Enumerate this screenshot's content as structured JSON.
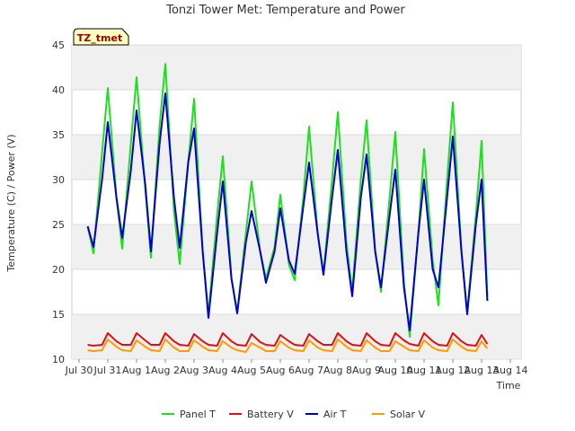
{
  "chart_data": {
    "type": "line",
    "title": "Tonzi Tower Met: Temperature and Power",
    "tag": "TZ_tmet",
    "xlabel": "Time",
    "ylabel": "Temperature (C) / Power (V)",
    "ylim": [
      10,
      45
    ],
    "yticks": [
      10,
      15,
      20,
      25,
      30,
      35,
      40,
      45
    ],
    "xlim": [
      0,
      15
    ],
    "xticks": [
      {
        "x": 0,
        "label": "Jul 30"
      },
      {
        "x": 1,
        "label": "Jul 31"
      },
      {
        "x": 2,
        "label": "Aug 1"
      },
      {
        "x": 3,
        "label": "Aug 2"
      },
      {
        "x": 4,
        "label": "Aug 3"
      },
      {
        "x": 5,
        "label": "Aug 4"
      },
      {
        "x": 6,
        "label": "Aug 5"
      },
      {
        "x": 7,
        "label": "Aug 6"
      },
      {
        "x": 8,
        "label": "Aug 7"
      },
      {
        "x": 9,
        "label": "Aug 8"
      },
      {
        "x": 10,
        "label": "Aug 9"
      },
      {
        "x": 11,
        "label": "Aug 10"
      },
      {
        "x": 12,
        "label": "Aug 11"
      },
      {
        "x": 13,
        "label": "Aug 12"
      },
      {
        "x": 14,
        "label": "Aug 13"
      },
      {
        "x": 15,
        "label": "Aug 14"
      }
    ],
    "grid": "horizontal bands",
    "legend_position": "bottom",
    "series": [
      {
        "name": "Panel T",
        "color": "#22dd22",
        "x": [
          0.3,
          0.5,
          0.8,
          1.0,
          1.3,
          1.5,
          1.8,
          2.0,
          2.3,
          2.5,
          2.8,
          3.0,
          3.3,
          3.5,
          3.8,
          4.0,
          4.3,
          4.5,
          4.8,
          5.0,
          5.3,
          5.5,
          5.8,
          6.0,
          6.3,
          6.5,
          6.8,
          7.0,
          7.3,
          7.5,
          7.8,
          8.0,
          8.3,
          8.5,
          8.8,
          9.0,
          9.3,
          9.5,
          9.8,
          10.0,
          10.3,
          10.5,
          10.8,
          11.0,
          11.3,
          11.5,
          11.8,
          12.0,
          12.3,
          12.5,
          12.8,
          13.0,
          13.3,
          13.5,
          13.8,
          14.0,
          14.2
        ],
        "values": [
          24.8,
          21.8,
          33.0,
          40.2,
          28.0,
          22.3,
          34.0,
          41.4,
          29.0,
          21.3,
          36.0,
          42.9,
          26.5,
          20.6,
          32.0,
          39.0,
          22.0,
          15.0,
          26.0,
          32.6,
          19.0,
          15.2,
          24.0,
          29.8,
          22.0,
          19.0,
          22.5,
          28.3,
          20.5,
          18.8,
          28.0,
          35.9,
          24.0,
          19.5,
          30.0,
          37.5,
          23.0,
          17.5,
          30.0,
          36.6,
          22.0,
          17.5,
          28.0,
          35.3,
          18.5,
          12.5,
          24.0,
          33.4,
          21.0,
          16.0,
          30.0,
          38.6,
          22.0,
          15.2,
          26.0,
          34.3,
          17.0
        ]
      },
      {
        "name": "Battery V",
        "color": "#dd1111",
        "x": [
          0.3,
          0.5,
          0.8,
          1.0,
          1.3,
          1.5,
          1.8,
          2.0,
          2.3,
          2.5,
          2.8,
          3.0,
          3.3,
          3.5,
          3.8,
          4.0,
          4.3,
          4.5,
          4.8,
          5.0,
          5.3,
          5.5,
          5.8,
          6.0,
          6.3,
          6.5,
          6.8,
          7.0,
          7.3,
          7.5,
          7.8,
          8.0,
          8.3,
          8.5,
          8.8,
          9.0,
          9.3,
          9.5,
          9.8,
          10.0,
          10.3,
          10.5,
          10.8,
          11.0,
          11.3,
          11.5,
          11.8,
          12.0,
          12.3,
          12.5,
          12.8,
          13.0,
          13.3,
          13.5,
          13.8,
          14.0,
          14.2
        ],
        "values": [
          11.6,
          11.5,
          11.6,
          12.9,
          12.0,
          11.6,
          11.6,
          12.9,
          12.1,
          11.6,
          11.6,
          12.9,
          12.0,
          11.6,
          11.5,
          12.8,
          12.0,
          11.6,
          11.5,
          12.9,
          12.0,
          11.6,
          11.5,
          12.8,
          11.9,
          11.6,
          11.5,
          12.7,
          12.0,
          11.6,
          11.5,
          12.8,
          12.0,
          11.6,
          11.6,
          12.9,
          12.0,
          11.6,
          11.5,
          12.9,
          12.0,
          11.6,
          11.5,
          12.9,
          12.1,
          11.7,
          11.5,
          12.9,
          12.0,
          11.6,
          11.5,
          12.9,
          12.0,
          11.6,
          11.5,
          12.7,
          11.7
        ]
      },
      {
        "name": "Air T",
        "color": "#0000cc",
        "x": [
          0.3,
          0.5,
          0.8,
          1.0,
          1.3,
          1.5,
          1.8,
          2.0,
          2.3,
          2.5,
          2.8,
          3.0,
          3.3,
          3.5,
          3.8,
          4.0,
          4.3,
          4.5,
          4.8,
          5.0,
          5.3,
          5.5,
          5.8,
          6.0,
          6.3,
          6.5,
          6.8,
          7.0,
          7.3,
          7.5,
          7.8,
          8.0,
          8.3,
          8.5,
          8.8,
          9.0,
          9.3,
          9.5,
          9.8,
          10.0,
          10.3,
          10.5,
          10.8,
          11.0,
          11.3,
          11.5,
          11.8,
          12.0,
          12.3,
          12.5,
          12.8,
          13.0,
          13.3,
          13.5,
          13.8,
          14.0,
          14.2
        ],
        "values": [
          24.8,
          22.5,
          30.0,
          36.4,
          28.0,
          23.5,
          31.0,
          37.7,
          29.5,
          22.0,
          34.0,
          39.6,
          28.0,
          22.4,
          32.0,
          35.7,
          22.0,
          14.6,
          24.0,
          29.8,
          19.0,
          15.1,
          23.0,
          26.5,
          22.0,
          18.5,
          22.0,
          26.8,
          21.0,
          19.5,
          27.0,
          31.9,
          24.0,
          19.4,
          28.0,
          33.3,
          22.0,
          17.0,
          28.0,
          32.8,
          22.0,
          18.0,
          26.0,
          31.1,
          18.0,
          13.2,
          24.0,
          30.0,
          20.0,
          18.0,
          28.0,
          34.8,
          22.0,
          15.0,
          25.0,
          30.0,
          16.5
        ]
      },
      {
        "name": "Solar V",
        "color": "#ff9900",
        "x": [
          0.3,
          0.5,
          0.8,
          1.0,
          1.3,
          1.5,
          1.8,
          2.0,
          2.3,
          2.5,
          2.8,
          3.0,
          3.3,
          3.5,
          3.8,
          4.0,
          4.3,
          4.5,
          4.8,
          5.0,
          5.3,
          5.5,
          5.8,
          6.0,
          6.3,
          6.5,
          6.8,
          7.0,
          7.3,
          7.5,
          7.8,
          8.0,
          8.3,
          8.5,
          8.8,
          9.0,
          9.3,
          9.5,
          9.8,
          10.0,
          10.3,
          10.5,
          10.8,
          11.0,
          11.3,
          11.5,
          11.8,
          12.0,
          12.3,
          12.5,
          12.8,
          13.0,
          13.3,
          13.5,
          13.8,
          14.0,
          14.2
        ],
        "values": [
          11.0,
          10.9,
          11.0,
          12.2,
          11.4,
          11.0,
          10.9,
          12.1,
          11.4,
          11.0,
          10.9,
          12.2,
          11.3,
          10.9,
          10.9,
          12.1,
          11.4,
          11.0,
          10.9,
          12.0,
          11.3,
          11.0,
          10.8,
          11.8,
          11.3,
          10.9,
          10.9,
          12.0,
          11.3,
          11.0,
          10.9,
          12.1,
          11.3,
          11.0,
          10.9,
          12.2,
          11.4,
          11.0,
          10.9,
          12.1,
          11.3,
          10.9,
          10.9,
          12.0,
          11.4,
          11.0,
          10.9,
          12.1,
          11.3,
          11.0,
          10.9,
          12.2,
          11.4,
          11.0,
          10.9,
          12.0,
          11.2
        ]
      }
    ]
  }
}
